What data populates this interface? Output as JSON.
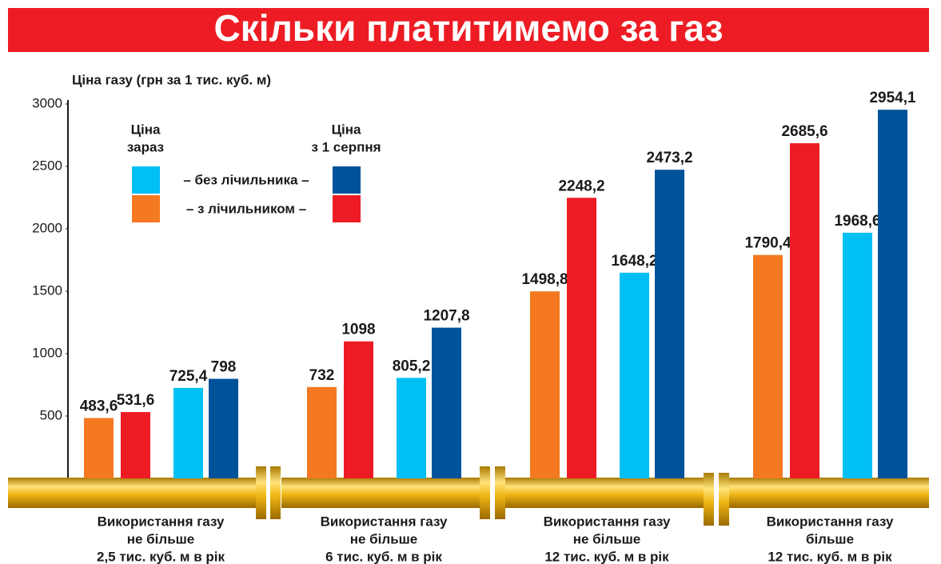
{
  "chart_data": {
    "type": "bar",
    "title": "Скільки платитимемо за газ",
    "y_axis_label": "Ціна газу (грн за 1 тис. куб. м)",
    "categories": [
      [
        "Використання газу",
        "не більше",
        "2,5 тис. куб. м в рік"
      ],
      [
        "Використання газу",
        "не більше",
        "6 тис. куб. м в рік"
      ],
      [
        "Використання газу",
        "не більше",
        "12 тис. куб. м в рік"
      ],
      [
        "Використання газу",
        "більше",
        "12 тис. куб. м в рік"
      ]
    ],
    "legend": {
      "columns": [
        [
          "Ціна",
          "зараз"
        ],
        [
          "Ціна",
          "з 1 серпня"
        ]
      ],
      "rows": [
        "– без лічильника –",
        "– з лічильником –"
      ]
    },
    "series": [
      {
        "color": "#f47920",
        "values": [
          483.6,
          732,
          1498.8,
          1790.4
        ],
        "value_labels": [
          "483,6",
          "732",
          "1498,8",
          "1790,4"
        ]
      },
      {
        "color": "#ed1c24",
        "values": [
          531.6,
          1098,
          2248.2,
          2685.6
        ],
        "value_labels": [
          "531,6",
          "1098",
          "2248,2",
          "2685,6"
        ]
      },
      {
        "color": "#00bff3",
        "values": [
          725.4,
          805.2,
          1648.2,
          1968.6
        ],
        "value_labels": [
          "725,4",
          "805,2",
          "1648,2",
          "1968,6"
        ]
      },
      {
        "color": "#00529b",
        "values": [
          798,
          1207.8,
          2473.2,
          2954.1
        ],
        "value_labels": [
          "798",
          "1207,8",
          "2473,2",
          "2954,1"
        ]
      }
    ],
    "ylim": [
      0,
      3000
    ],
    "yticks": [
      500,
      1000,
      1500,
      2000,
      2500,
      3000
    ]
  }
}
